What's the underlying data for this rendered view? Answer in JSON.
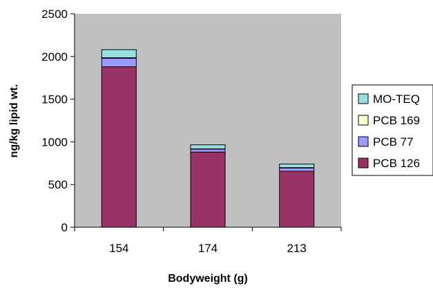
{
  "chart_data": {
    "type": "bar",
    "stacked": true,
    "title": "",
    "xlabel": "Bodyweight (g)",
    "ylabel": "ng/kg lipid wt.",
    "categories": [
      "154",
      "174",
      "213"
    ],
    "ylim": [
      0,
      2500
    ],
    "yticks": [
      "0",
      "500",
      "1000",
      "1500",
      "2000",
      "2500"
    ],
    "grid": false,
    "plot_background": "#c0c0c0",
    "legend_position": "right",
    "series": [
      {
        "name": "PCB 126",
        "color": "#993366",
        "values": [
          1880,
          880,
          655
        ]
      },
      {
        "name": "PCB 77",
        "color": "#9999ff",
        "values": [
          100,
          35,
          40
        ]
      },
      {
        "name": "PCB 169",
        "color": "#ffffcc",
        "values": [
          5,
          3,
          3
        ]
      },
      {
        "name": "MO-TEQ",
        "color": "#99dede",
        "values": [
          95,
          47,
          42
        ]
      }
    ],
    "legend_order": [
      "MO-TEQ",
      "PCB 169",
      "PCB 77",
      "PCB 126"
    ]
  }
}
